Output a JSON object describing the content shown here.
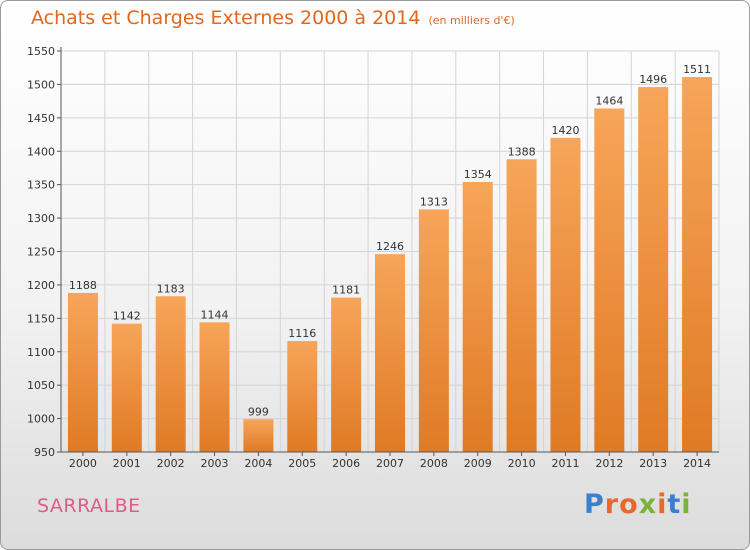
{
  "header": {
    "title": "Achats et Charges Externes 2000 à 2014",
    "subtitle": "(en milliers d'€)"
  },
  "footer": {
    "city": "SARRALBE",
    "logo": "Proxiti"
  },
  "colors": {
    "title": "#e2671c",
    "city": "#e05a8a",
    "bar_light": "#f7a55a",
    "bar_dark": "#e07a24",
    "logo": [
      "#3a7fd0",
      "#e8692d",
      "#e8692d",
      "#7cb23b",
      "#e8692d",
      "#3a7fd0",
      "#7cb23b"
    ]
  },
  "chart_data": {
    "type": "bar",
    "categories": [
      "2000",
      "2001",
      "2002",
      "2003",
      "2004",
      "2005",
      "2006",
      "2007",
      "2008",
      "2009",
      "2010",
      "2011",
      "2012",
      "2013",
      "2014"
    ],
    "values": [
      1188,
      1142,
      1183,
      1144,
      999,
      1116,
      1181,
      1246,
      1313,
      1354,
      1388,
      1420,
      1464,
      1496,
      1511
    ],
    "title": "Achats et Charges Externes 2000 à 2014",
    "subtitle": "(en milliers d'€)",
    "ylim": [
      950,
      1550
    ],
    "yticks": [
      950,
      1000,
      1050,
      1100,
      1150,
      1200,
      1250,
      1300,
      1350,
      1400,
      1450,
      1500,
      1550
    ],
    "grid": true
  }
}
